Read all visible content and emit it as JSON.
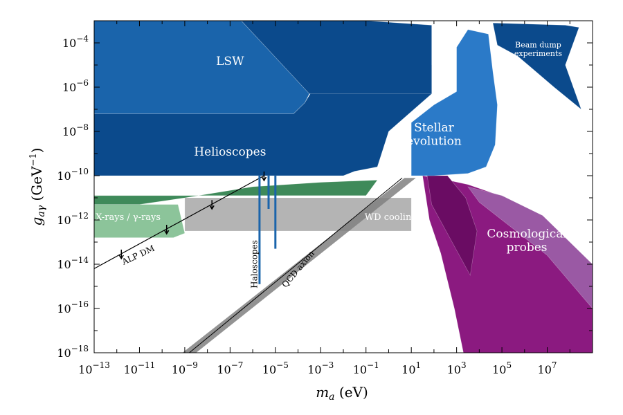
{
  "chart_data": {
    "type": "area",
    "xlabel_main": "m",
    "xlabel_sub": "a",
    "xlabel_unit": " (eV)",
    "ylabel_main": "g",
    "ylabel_sub": "aγ",
    "ylabel_unit": " (GeV",
    "ylabel_unit_exp": "−1",
    "ylabel_close": ")",
    "xscale": "log",
    "yscale": "log",
    "xlim_log10": [
      -13,
      9
    ],
    "ylim_log10": [
      -18,
      -3
    ],
    "x_ticks": [
      {
        "exp": -13,
        "base": "10",
        "sup": "−13"
      },
      {
        "exp": -11,
        "base": "10",
        "sup": "−11"
      },
      {
        "exp": -9,
        "base": "10",
        "sup": "−9"
      },
      {
        "exp": -7,
        "base": "10",
        "sup": "−7"
      },
      {
        "exp": -5,
        "base": "10",
        "sup": "−5"
      },
      {
        "exp": -3,
        "base": "10",
        "sup": "−3"
      },
      {
        "exp": -1,
        "base": "10",
        "sup": "−1"
      },
      {
        "exp": 1,
        "base": "10",
        "sup": "1"
      },
      {
        "exp": 3,
        "base": "10",
        "sup": "3"
      },
      {
        "exp": 5,
        "base": "10",
        "sup": "5"
      },
      {
        "exp": 7,
        "base": "10",
        "sup": "7"
      }
    ],
    "y_ticks": [
      {
        "exp": -4,
        "base": "10",
        "sup": "−4"
      },
      {
        "exp": -6,
        "base": "10",
        "sup": "−6"
      },
      {
        "exp": -8,
        "base": "10",
        "sup": "−8"
      },
      {
        "exp": -10,
        "base": "10",
        "sup": "−10"
      },
      {
        "exp": -12,
        "base": "10",
        "sup": "−12"
      },
      {
        "exp": -14,
        "base": "10",
        "sup": "−14"
      },
      {
        "exp": -16,
        "base": "10",
        "sup": "−16"
      },
      {
        "exp": -18,
        "base": "10",
        "sup": "−18"
      }
    ],
    "colors": {
      "dark_blue": "#0b4a8c",
      "mid_blue": "#1a64ab",
      "light_blue": "#2b7ac8",
      "green_dark": "#3f8a5a",
      "green_light": "#8cc49a",
      "gray": "#b4b4b4",
      "gray_dark": "#808080",
      "purple_dark": "#6a0c63",
      "purple_mid": "#8b1a80",
      "purple_light": "#9a59a4"
    },
    "regions": [
      {
        "name": "LSW",
        "label": "LSW",
        "label_at": [
          -7.0,
          -5.0
        ],
        "font": 17,
        "color": "mid_blue",
        "poly": [
          [
            -13,
            -3
          ],
          [
            -6.5,
            -3
          ],
          [
            -3.5,
            -6.3
          ],
          [
            -3.7,
            -6.7
          ],
          [
            -4.2,
            -7.2
          ],
          [
            -5.5,
            -7.2
          ],
          [
            -13,
            -7.2
          ]
        ]
      },
      {
        "name": "LSW-top",
        "label": "",
        "color": "dark_blue",
        "poly": [
          [
            -6.5,
            -3
          ],
          [
            -1.0,
            -3
          ],
          [
            1.9,
            -3.2
          ],
          [
            1.9,
            -6.3
          ],
          [
            -3.5,
            -6.3
          ]
        ]
      },
      {
        "name": "Helioscopes",
        "label": "Helioscopes",
        "label_at": [
          -7.0,
          -9.1
        ],
        "font": 17,
        "color": "dark_blue",
        "poly": [
          [
            -13,
            -7.2
          ],
          [
            -4.2,
            -7.2
          ],
          [
            -3.7,
            -6.7
          ],
          [
            -3.4,
            -6.2
          ],
          [
            -3.0,
            -5.4
          ],
          [
            1.9,
            -5.0
          ],
          [
            1.9,
            -6.3
          ],
          [
            0.0,
            -8.0
          ],
          [
            -0.5,
            -9.6
          ],
          [
            -1.5,
            -9.8
          ],
          [
            -2.0,
            -10.0
          ],
          [
            -3.0,
            -10.0
          ],
          [
            -13,
            -10.0
          ]
        ]
      },
      {
        "name": "Stellar-evolution",
        "label": "Stellar|evolution",
        "label_at": [
          2.0,
          -8.0
        ],
        "font": 17,
        "color": "light_blue",
        "poly": [
          [
            1.0,
            -10.0
          ],
          [
            1.0,
            -7.6
          ],
          [
            2.0,
            -6.8
          ],
          [
            3.0,
            -6.2
          ],
          [
            3.0,
            -4.2
          ],
          [
            3.5,
            -3.4
          ],
          [
            4.4,
            -3.6
          ],
          [
            4.6,
            -5.3
          ],
          [
            4.8,
            -6.8
          ],
          [
            4.7,
            -8.6
          ],
          [
            4.3,
            -9.6
          ],
          [
            3.5,
            -9.9
          ],
          [
            2.0,
            -10.0
          ]
        ]
      },
      {
        "name": "Beam-dump",
        "label": "Beam dump|experiments",
        "label_at": [
          6.6,
          -4.2
        ],
        "font": 11,
        "color": "dark_blue",
        "poly": [
          [
            4.6,
            -3.1
          ],
          [
            7.8,
            -3.2
          ],
          [
            8.4,
            -3.3
          ],
          [
            7.8,
            -5.0
          ],
          [
            8.5,
            -7.0
          ],
          [
            7.3,
            -6.0
          ],
          [
            5.7,
            -4.6
          ],
          [
            4.8,
            -4.1
          ]
        ]
      },
      {
        "name": "Cosmological-probes",
        "label": "Cosmological|probes",
        "label_at": [
          6.1,
          -12.8
        ],
        "font": 17,
        "color": "purple_mid",
        "poly": [
          [
            1.5,
            -10.0
          ],
          [
            2.6,
            -10.2
          ],
          [
            3.5,
            -10.4
          ],
          [
            5.2,
            -11.0
          ],
          [
            6.8,
            -12.2
          ],
          [
            8.2,
            -13.6
          ],
          [
            9.0,
            -14.4
          ],
          [
            9.0,
            -18.0
          ],
          [
            3.3,
            -18.0
          ],
          [
            2.9,
            -16.0
          ],
          [
            2.3,
            -13.5
          ],
          [
            1.8,
            -12.0
          ]
        ]
      },
      {
        "name": "Cosmological-probes-light",
        "label": "",
        "color": "purple_light",
        "poly": [
          [
            3.5,
            -10.5
          ],
          [
            5.0,
            -10.9
          ],
          [
            6.8,
            -11.8
          ],
          [
            9.0,
            -14.0
          ],
          [
            9.0,
            -16.0
          ],
          [
            7.0,
            -13.6
          ],
          [
            5.0,
            -12.0
          ],
          [
            4.0,
            -11.2
          ]
        ]
      },
      {
        "name": "Cosmological-probes-dark",
        "label": "",
        "color": "purple_dark",
        "poly": [
          [
            1.7,
            -10.0
          ],
          [
            2.6,
            -10.0
          ],
          [
            3.4,
            -11.0
          ],
          [
            3.9,
            -12.5
          ],
          [
            3.6,
            -14.5
          ],
          [
            2.8,
            -13.0
          ],
          [
            1.9,
            -11.3
          ]
        ]
      },
      {
        "name": "X-rays",
        "label": "X-rays / γ-rays",
        "label_at": [
          -11.5,
          -12.0
        ],
        "font": 13,
        "color": "green_dark",
        "poly": [
          [
            -13,
            -10.9
          ],
          [
            -1.0,
            -10.9
          ],
          [
            -0.5,
            -10.2
          ],
          [
            -3.0,
            -10.3
          ],
          [
            -6.0,
            -10.5
          ],
          [
            -9.0,
            -11.0
          ],
          [
            -11.0,
            -11.3
          ],
          [
            -13,
            -11.3
          ]
        ]
      },
      {
        "name": "X-rays-light",
        "label": "",
        "color": "green_light",
        "poly": [
          [
            -13,
            -11.3
          ],
          [
            -9.3,
            -11.3
          ],
          [
            -9.0,
            -12.6
          ],
          [
            -9.5,
            -12.8
          ],
          [
            -13,
            -12.8
          ]
        ]
      },
      {
        "name": "WD-cooling",
        "label": "WD cooling",
        "label_at": [
          0.1,
          -12.0
        ],
        "font": 13,
        "color": "gray",
        "poly": [
          [
            -9.0,
            -11.0
          ],
          [
            1.0,
            -11.0
          ],
          [
            1.0,
            -12.5
          ],
          [
            -9.0,
            -12.5
          ]
        ]
      }
    ],
    "qcd_band": {
      "label": "QCD axion",
      "label_at": [
        -3.9,
        -14.3
      ],
      "color": "gray_dark",
      "poly": [
        [
          -9.1,
          -18.0
        ],
        [
          -8.5,
          -18.0
        ],
        [
          1.2,
          -10.1
        ],
        [
          0.7,
          -10.1
        ]
      ],
      "line": [
        [
          -8.8,
          -18.0
        ],
        [
          0.6,
          -10.1
        ]
      ]
    },
    "alp_dm": {
      "label": "ALP DM",
      "label_at": [
        -11.0,
        -13.7
      ],
      "color": "#000000",
      "line": [
        [
          -13,
          -14.2
        ],
        [
          -5.5,
          -10.0
        ]
      ],
      "markers_x": [
        -11.8,
        -9.8,
        -7.8,
        -5.5
      ]
    },
    "haloscopes": {
      "label": "Haloscopes",
      "label_at": [
        -5.8,
        -14.0
      ],
      "color": "mid_blue",
      "spikes": [
        [
          -5.7,
          -14.9
        ],
        [
          -5.3,
          -11.5
        ],
        [
          -5.0,
          -13.3
        ]
      ]
    },
    "title": ""
  }
}
